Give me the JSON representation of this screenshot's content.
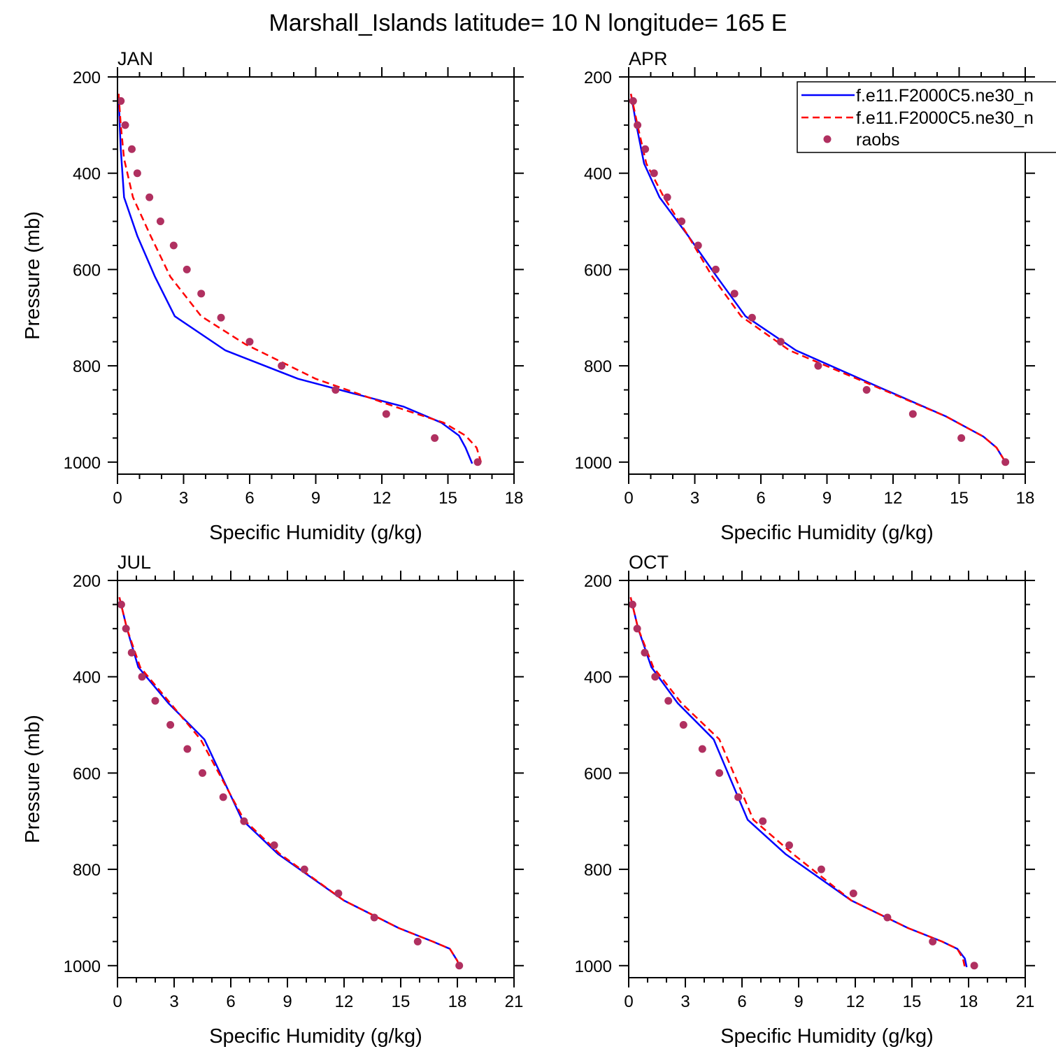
{
  "title": "Marshall_Islands  latitude= 10 N longitude= 165 E",
  "legend": {
    "entries": [
      {
        "label": "f.e11.F2000C5.ne30_n",
        "color": "#0000ff",
        "style": "solid"
      },
      {
        "label": "f.e11.F2000C5.ne30_n",
        "color": "#ff0000",
        "style": "dashed"
      },
      {
        "label": "raobs",
        "color": "#b03060",
        "style": "dot"
      }
    ]
  },
  "chart_data": [
    {
      "type": "line",
      "title": "JAN",
      "xlabel": "Specific Humidity (g/kg)",
      "ylabel": "Pressure (mb)",
      "xlim": [
        0,
        18
      ],
      "ylim": [
        1025,
        200
      ],
      "xticks": [
        "0",
        "3",
        "6",
        "9",
        "12",
        "15",
        "18"
      ],
      "yticks": [
        "200",
        "400",
        "600",
        "800",
        "1000"
      ],
      "series": [
        {
          "name": "f.e11.F2000C5.ne30_n",
          "color": "#0000ff",
          "style": "solid",
          "x": [
            0.05,
            0.1,
            0.15,
            0.3,
            0.9,
            1.7,
            2.6,
            4.9,
            8.2,
            13.0,
            14.7,
            15.5,
            15.8,
            16.1
          ],
          "y": [
            235,
            300,
            350,
            450,
            530,
            615,
            697,
            768,
            827,
            885,
            918,
            945,
            970,
            1003
          ]
        },
        {
          "name": "f.e11.F2000C5.ne30_n",
          "color": "#ff0000",
          "style": "dashed",
          "x": [
            0.05,
            0.15,
            0.3,
            0.7,
            1.5,
            2.4,
            3.8,
            5.8,
            9.0,
            12.6,
            14.8,
            15.8,
            16.3,
            16.5
          ],
          "y": [
            235,
            300,
            370,
            450,
            530,
            615,
            697,
            755,
            827,
            885,
            918,
            945,
            970,
            1000
          ]
        },
        {
          "name": "raobs",
          "color": "#b03060",
          "style": "dot",
          "x": [
            0.15,
            0.35,
            0.65,
            0.9,
            1.45,
            1.95,
            2.55,
            3.15,
            3.8,
            4.7,
            6.0,
            7.45,
            9.9,
            12.2,
            14.4,
            16.35
          ],
          "y": [
            250,
            300,
            350,
            400,
            450,
            500,
            550,
            600,
            650,
            700,
            750,
            800,
            850,
            900,
            950,
            1000
          ]
        }
      ]
    },
    {
      "type": "line",
      "title": "APR",
      "xlabel": "Specific Humidity (g/kg)",
      "ylabel": "",
      "xlim": [
        0,
        18
      ],
      "ylim": [
        1025,
        200
      ],
      "xticks": [
        "0",
        "3",
        "6",
        "9",
        "12",
        "15",
        "18"
      ],
      "yticks": [
        "200",
        "400",
        "600",
        "800",
        "1000"
      ],
      "series": [
        {
          "name": "f.e11.F2000C5.ne30_n",
          "color": "#0000ff",
          "style": "solid",
          "x": [
            0.1,
            0.35,
            0.7,
            1.4,
            2.7,
            4.0,
            5.3,
            7.6,
            11.4,
            14.4,
            16.1,
            16.7,
            17.1
          ],
          "y": [
            235,
            300,
            380,
            450,
            530,
            615,
            697,
            768,
            845,
            905,
            947,
            970,
            1000
          ]
        },
        {
          "name": "f.e11.F2000C5.ne30_n",
          "color": "#ff0000",
          "style": "dashed",
          "x": [
            0.1,
            0.4,
            0.8,
            1.6,
            2.7,
            3.8,
            5.1,
            7.3,
            11.3,
            14.4,
            16.1,
            16.7,
            17.1
          ],
          "y": [
            235,
            300,
            380,
            450,
            530,
            615,
            697,
            768,
            845,
            905,
            947,
            970,
            1000
          ]
        },
        {
          "name": "raobs",
          "color": "#b03060",
          "style": "dot",
          "x": [
            0.2,
            0.4,
            0.75,
            1.15,
            1.75,
            2.4,
            3.15,
            3.95,
            4.8,
            5.6,
            6.9,
            8.6,
            10.8,
            12.9,
            15.1,
            17.1
          ],
          "y": [
            250,
            300,
            350,
            400,
            450,
            500,
            550,
            600,
            650,
            700,
            750,
            800,
            850,
            900,
            950,
            1000
          ]
        }
      ]
    },
    {
      "type": "line",
      "title": "JUL",
      "xlabel": "Specific Humidity (g/kg)",
      "ylabel": "Pressure (mb)",
      "xlim": [
        0,
        21
      ],
      "ylim": [
        1025,
        200
      ],
      "xticks": [
        "0",
        "3",
        "6",
        "9",
        "12",
        "15",
        "18",
        "21"
      ],
      "yticks": [
        "200",
        "400",
        "600",
        "800",
        "1000"
      ],
      "series": [
        {
          "name": "f.e11.F2000C5.ne30_n",
          "color": "#0000ff",
          "style": "solid",
          "x": [
            0.1,
            0.5,
            1.1,
            2.7,
            4.6,
            6.6,
            8.5,
            12.0,
            14.9,
            16.7,
            17.6,
            18.0,
            18.1
          ],
          "y": [
            235,
            300,
            380,
            455,
            530,
            697,
            768,
            865,
            922,
            950,
            965,
            990,
            1003
          ]
        },
        {
          "name": "f.e11.F2000C5.ne30_n",
          "color": "#ff0000",
          "style": "dashed",
          "x": [
            0.1,
            0.5,
            1.2,
            2.8,
            4.4,
            6.7,
            8.6,
            12.0,
            14.9,
            16.7,
            17.6,
            18.0,
            18.1
          ],
          "y": [
            235,
            300,
            380,
            455,
            530,
            697,
            768,
            865,
            922,
            950,
            965,
            990,
            1003
          ]
        },
        {
          "name": "raobs",
          "color": "#b03060",
          "style": "dot",
          "x": [
            0.2,
            0.45,
            0.75,
            1.3,
            2.0,
            2.8,
            3.7,
            4.5,
            5.6,
            6.7,
            8.3,
            9.9,
            11.7,
            13.6,
            15.9,
            18.1
          ],
          "y": [
            250,
            300,
            350,
            400,
            450,
            500,
            550,
            600,
            650,
            700,
            750,
            800,
            850,
            900,
            950,
            1000
          ]
        }
      ]
    },
    {
      "type": "line",
      "title": "OCT",
      "xlabel": "Specific Humidity (g/kg)",
      "ylabel": "",
      "xlim": [
        0,
        21
      ],
      "ylim": [
        1025,
        200
      ],
      "xticks": [
        "0",
        "3",
        "6",
        "9",
        "12",
        "15",
        "18",
        "21"
      ],
      "yticks": [
        "200",
        "400",
        "600",
        "800",
        "1000"
      ],
      "series": [
        {
          "name": "f.e11.F2000C5.ne30_n",
          "color": "#0000ff",
          "style": "solid",
          "x": [
            0.1,
            0.5,
            1.2,
            2.6,
            4.5,
            6.3,
            8.3,
            11.8,
            14.8,
            16.6,
            17.4,
            17.8,
            17.9
          ],
          "y": [
            235,
            300,
            380,
            455,
            530,
            697,
            768,
            865,
            922,
            950,
            965,
            985,
            1003
          ]
        },
        {
          "name": "f.e11.F2000C5.ne30_n",
          "color": "#ff0000",
          "style": "dashed",
          "x": [
            0.1,
            0.5,
            1.3,
            2.8,
            4.8,
            6.6,
            8.7,
            11.8,
            14.8,
            16.6,
            17.4,
            17.7,
            17.8
          ],
          "y": [
            235,
            300,
            380,
            455,
            530,
            697,
            768,
            865,
            922,
            950,
            965,
            985,
            1003
          ]
        },
        {
          "name": "raobs",
          "color": "#b03060",
          "style": "dot",
          "x": [
            0.2,
            0.45,
            0.85,
            1.4,
            2.1,
            2.9,
            3.9,
            4.8,
            5.8,
            7.1,
            8.5,
            10.2,
            11.9,
            13.7,
            16.1,
            18.3
          ],
          "y": [
            250,
            300,
            350,
            400,
            450,
            500,
            550,
            600,
            650,
            700,
            750,
            800,
            850,
            900,
            950,
            1000
          ]
        }
      ]
    }
  ]
}
